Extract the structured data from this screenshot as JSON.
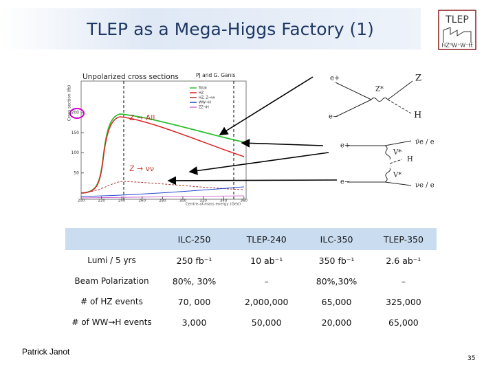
{
  "title": "TLEP as a Mega-Higgs Factory (1)",
  "logo": {
    "name": "TLEP",
    "sub": "HZ⁰W⁺W⁻tt̄"
  },
  "plot": {
    "caption": "Unpolarized cross sections",
    "credit": "PJ and G. Ganis",
    "ylabel": "Cross section (fb)",
    "xlabel": "Centre-of-mass energy (GeV)",
    "yticks": [
      50,
      100,
      150,
      200
    ],
    "xticks": [
      200,
      220,
      240,
      260,
      280,
      300,
      320,
      340,
      360
    ],
    "legend": [
      "Total",
      "HZ",
      "HZ, Z→νν",
      "WW→H",
      "ZZ→H"
    ],
    "annotations": [
      "Z → All",
      "Z → νν"
    ]
  },
  "diagrams": {
    "hz": [
      "e+",
      "e−",
      "Z*",
      "Z",
      "H"
    ],
    "fusion": [
      "e+",
      "e−",
      "ν̄e / e",
      "νe / e",
      "V*",
      "V*",
      "H"
    ]
  },
  "table": {
    "header": [
      "ILC-250",
      "TLEP-240",
      "ILC-350",
      "TLEP-350"
    ],
    "rows": [
      {
        "label": "Lumi / 5 yrs",
        "cells": [
          "250 fb⁻¹",
          "10 ab⁻¹",
          "350 fb⁻¹",
          "2.6 ab⁻¹"
        ]
      },
      {
        "label": "Beam Polarization",
        "cells": [
          "80%, 30%",
          "–",
          "80%,30%",
          "–"
        ]
      },
      {
        "label": "# of HZ events",
        "cells": [
          "70, 000",
          "2,000,000",
          "65,000",
          "325,000"
        ]
      },
      {
        "label": "# of WW→H events",
        "cells": [
          "3,000",
          "50,000",
          "20,000",
          "65,000"
        ]
      }
    ]
  },
  "footer": {
    "author": "Patrick Janot",
    "page": "35"
  }
}
